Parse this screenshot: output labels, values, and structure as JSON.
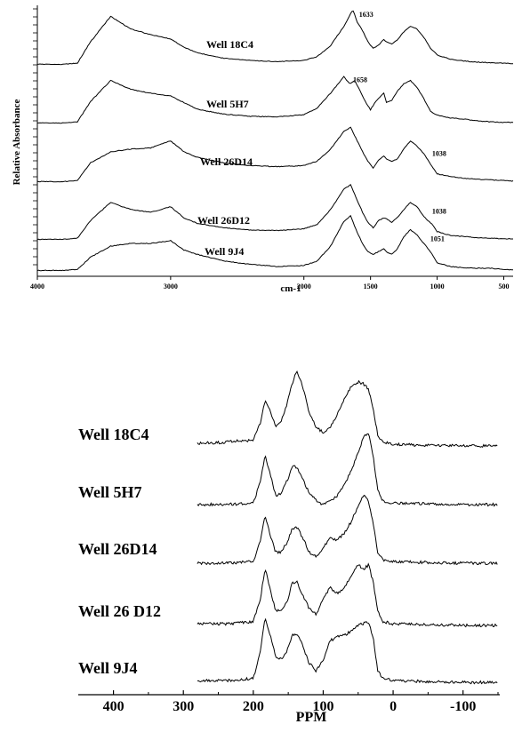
{
  "chart_data": [
    {
      "type": "line",
      "ylabel": "Relative Absorbance",
      "xlabel": "cm-1",
      "xlim": [
        4000,
        430
      ],
      "x_tick_labels": [
        "4000",
        "3000",
        "2000",
        "1500",
        "1000",
        "500"
      ],
      "x_ticks": [
        4000,
        3000,
        2000,
        1500,
        1000,
        500
      ],
      "series": [
        {
          "name": "Well 18C4",
          "x": [
            4000,
            3800,
            3700,
            3600,
            3450,
            3300,
            3150,
            3000,
            2900,
            2800,
            2600,
            2400,
            2200,
            2000,
            1900,
            1800,
            1700,
            1633,
            1600,
            1560,
            1520,
            1480,
            1440,
            1400,
            1380,
            1340,
            1300,
            1250,
            1200,
            1150,
            1100,
            1050,
            1000,
            900,
            800,
            700,
            600,
            500,
            430
          ],
          "y": [
            0.01,
            0.01,
            0.03,
            0.42,
            0.88,
            0.65,
            0.55,
            0.47,
            0.32,
            0.22,
            0.12,
            0.08,
            0.06,
            0.08,
            0.15,
            0.35,
            0.7,
            1.0,
            0.78,
            0.62,
            0.42,
            0.3,
            0.36,
            0.46,
            0.42,
            0.38,
            0.45,
            0.6,
            0.7,
            0.65,
            0.5,
            0.3,
            0.18,
            0.1,
            0.07,
            0.05,
            0.04,
            0.03,
            0.02
          ]
        },
        {
          "name": "Well 5H7",
          "x": [
            4000,
            3800,
            3700,
            3600,
            3450,
            3300,
            3150,
            3000,
            2900,
            2800,
            2600,
            2400,
            2200,
            2000,
            1900,
            1800,
            1700,
            1658,
            1620,
            1580,
            1540,
            1500,
            1460,
            1420,
            1400,
            1380,
            1340,
            1300,
            1250,
            1200,
            1150,
            1100,
            1050,
            1000,
            900,
            800,
            700,
            600,
            500,
            430
          ],
          "y": [
            0.01,
            0.01,
            0.03,
            0.4,
            0.78,
            0.62,
            0.55,
            0.5,
            0.38,
            0.26,
            0.17,
            0.13,
            0.12,
            0.16,
            0.28,
            0.55,
            0.85,
            0.72,
            0.78,
            0.6,
            0.4,
            0.25,
            0.4,
            0.5,
            0.55,
            0.38,
            0.42,
            0.58,
            0.72,
            0.78,
            0.65,
            0.45,
            0.22,
            0.15,
            0.1,
            0.08,
            0.05,
            0.03,
            0.02,
            0.02
          ]
        },
        {
          "name": "Well 26D14",
          "x": [
            4000,
            3800,
            3700,
            3600,
            3450,
            3300,
            3150,
            3000,
            2900,
            2800,
            2600,
            2400,
            2200,
            2000,
            1900,
            1800,
            1700,
            1650,
            1600,
            1560,
            1520,
            1480,
            1440,
            1400,
            1380,
            1340,
            1300,
            1250,
            1200,
            1150,
            1100,
            1038,
            1000,
            900,
            800,
            700,
            600,
            500,
            430
          ],
          "y": [
            0.01,
            0.01,
            0.03,
            0.35,
            0.55,
            0.6,
            0.62,
            0.75,
            0.55,
            0.45,
            0.35,
            0.3,
            0.28,
            0.3,
            0.38,
            0.6,
            0.92,
            1.0,
            0.75,
            0.55,
            0.38,
            0.25,
            0.4,
            0.48,
            0.42,
            0.38,
            0.42,
            0.6,
            0.75,
            0.65,
            0.52,
            0.28,
            0.15,
            0.1,
            0.07,
            0.05,
            0.04,
            0.03,
            0.02
          ]
        },
        {
          "name": "Well 26D12",
          "x": [
            4000,
            3800,
            3700,
            3600,
            3450,
            3300,
            3150,
            3000,
            2900,
            2800,
            2600,
            2400,
            2200,
            2000,
            1900,
            1800,
            1700,
            1650,
            1600,
            1560,
            1520,
            1480,
            1440,
            1400,
            1380,
            1340,
            1300,
            1250,
            1200,
            1150,
            1100,
            1038,
            1000,
            900,
            800,
            700,
            600,
            500,
            430
          ],
          "y": [
            0.01,
            0.01,
            0.03,
            0.35,
            0.68,
            0.55,
            0.5,
            0.6,
            0.4,
            0.3,
            0.22,
            0.18,
            0.17,
            0.2,
            0.28,
            0.55,
            0.92,
            1.0,
            0.72,
            0.5,
            0.32,
            0.22,
            0.35,
            0.4,
            0.38,
            0.32,
            0.4,
            0.55,
            0.68,
            0.6,
            0.42,
            0.28,
            0.15,
            0.08,
            0.06,
            0.04,
            0.03,
            0.02,
            0.02
          ]
        },
        {
          "name": "Well 9J4",
          "x": [
            4000,
            3800,
            3700,
            3600,
            3450,
            3300,
            3150,
            3000,
            2900,
            2800,
            2600,
            2400,
            2200,
            2000,
            1900,
            1800,
            1700,
            1650,
            1600,
            1560,
            1520,
            1480,
            1440,
            1400,
            1380,
            1340,
            1300,
            1250,
            1200,
            1150,
            1100,
            1051,
            1000,
            900,
            800,
            700,
            600,
            500,
            430
          ],
          "y": [
            0.01,
            0.01,
            0.03,
            0.25,
            0.45,
            0.5,
            0.5,
            0.55,
            0.38,
            0.3,
            0.18,
            0.12,
            0.08,
            0.1,
            0.18,
            0.45,
            0.9,
            1.0,
            0.7,
            0.5,
            0.35,
            0.3,
            0.35,
            0.4,
            0.35,
            0.3,
            0.4,
            0.62,
            0.75,
            0.65,
            0.5,
            0.35,
            0.15,
            0.08,
            0.06,
            0.05,
            0.05,
            0.03,
            0.02
          ]
        }
      ],
      "annotations": [
        {
          "series": "Well 18C4",
          "text": "1633",
          "x": 1633
        },
        {
          "series": "Well 5H7",
          "text": "1658",
          "x": 1658
        },
        {
          "series": "Well 26D14",
          "text": "1038",
          "x": 1038
        },
        {
          "series": "Well 26D12",
          "text": "1038",
          "x": 1038
        },
        {
          "series": "Well 9J4",
          "text": "1051",
          "x": 1051
        }
      ]
    },
    {
      "type": "line",
      "xlabel": "PPM",
      "xlim": [
        430,
        -150
      ],
      "x_tick_labels": [
        "400",
        "300",
        "200",
        "100",
        "0",
        "-100"
      ],
      "x_ticks": [
        400,
        300,
        200,
        100,
        0,
        -100
      ],
      "series": [
        {
          "name": "Well 18C4",
          "x": [
            430,
            300,
            240,
            200,
            190,
            183,
            175,
            168,
            162,
            155,
            145,
            138,
            130,
            120,
            110,
            100,
            90,
            80,
            70,
            60,
            50,
            42,
            35,
            28,
            22,
            15,
            0,
            -100,
            -150
          ],
          "y": [
            0.0,
            0.02,
            0.05,
            0.08,
            0.3,
            0.6,
            0.45,
            0.25,
            0.3,
            0.45,
            0.8,
            1.0,
            0.8,
            0.45,
            0.25,
            0.18,
            0.25,
            0.42,
            0.62,
            0.78,
            0.85,
            0.82,
            0.75,
            0.45,
            0.15,
            0.05,
            0.02,
            0.0,
            0.0
          ]
        },
        {
          "name": "Well 5H7",
          "x": [
            430,
            300,
            240,
            200,
            190,
            183,
            175,
            168,
            160,
            150,
            145,
            138,
            130,
            120,
            110,
            100,
            90,
            80,
            70,
            60,
            50,
            42,
            35,
            28,
            22,
            15,
            0,
            -100,
            -150
          ],
          "y": [
            0.0,
            0.0,
            0.0,
            0.02,
            0.3,
            0.65,
            0.38,
            0.12,
            0.15,
            0.35,
            0.5,
            0.5,
            0.35,
            0.15,
            0.05,
            0.0,
            0.05,
            0.12,
            0.25,
            0.45,
            0.68,
            0.9,
            0.95,
            0.6,
            0.2,
            0.05,
            0.02,
            0.0,
            0.0
          ]
        },
        {
          "name": "Well 26D14",
          "x": [
            430,
            300,
            240,
            200,
            190,
            183,
            175,
            168,
            160,
            150,
            145,
            138,
            130,
            120,
            110,
            100,
            90,
            80,
            70,
            60,
            50,
            42,
            35,
            28,
            22,
            15,
            0,
            -100,
            -150
          ],
          "y": [
            0.0,
            0.0,
            0.0,
            0.02,
            0.3,
            0.62,
            0.35,
            0.15,
            0.15,
            0.3,
            0.45,
            0.48,
            0.35,
            0.15,
            0.08,
            0.2,
            0.35,
            0.3,
            0.4,
            0.55,
            0.75,
            0.9,
            0.82,
            0.5,
            0.15,
            0.05,
            0.02,
            0.0,
            0.0
          ]
        },
        {
          "name": "Well 26 D12",
          "x": [
            430,
            300,
            240,
            200,
            190,
            183,
            175,
            168,
            160,
            150,
            145,
            138,
            130,
            120,
            110,
            100,
            90,
            80,
            70,
            60,
            50,
            42,
            35,
            28,
            22,
            15,
            0,
            -100,
            -150
          ],
          "y": [
            0.0,
            0.02,
            0.02,
            0.05,
            0.35,
            0.75,
            0.45,
            0.2,
            0.2,
            0.35,
            0.55,
            0.58,
            0.42,
            0.22,
            0.15,
            0.35,
            0.5,
            0.42,
            0.5,
            0.65,
            0.8,
            0.75,
            0.8,
            0.55,
            0.2,
            0.05,
            0.02,
            0.0,
            0.0
          ]
        },
        {
          "name": "Well 9J4",
          "x": [
            430,
            300,
            240,
            200,
            190,
            183,
            175,
            168,
            160,
            150,
            145,
            138,
            130,
            120,
            110,
            100,
            90,
            80,
            70,
            60,
            50,
            42,
            35,
            28,
            22,
            15,
            0,
            -100,
            -150
          ],
          "y": [
            0.0,
            0.02,
            0.02,
            0.05,
            0.4,
            0.85,
            0.6,
            0.35,
            0.3,
            0.45,
            0.62,
            0.65,
            0.5,
            0.25,
            0.15,
            0.3,
            0.55,
            0.6,
            0.62,
            0.68,
            0.75,
            0.78,
            0.8,
            0.55,
            0.15,
            0.05,
            0.02,
            0.0,
            0.0
          ]
        }
      ]
    }
  ]
}
